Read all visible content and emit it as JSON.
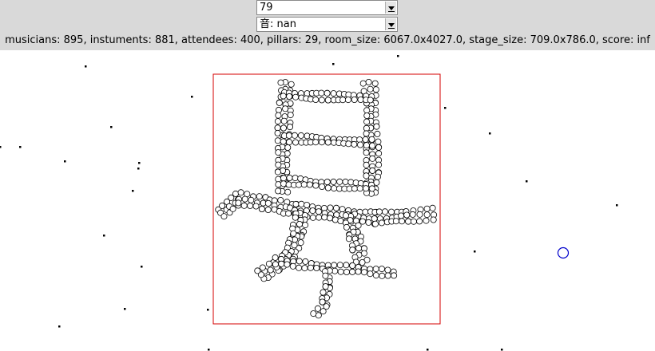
{
  "controls": {
    "problem_select_value": "79",
    "mode_select_value": "音: nan"
  },
  "stats_text": "musicians: 895, instuments: 881, attendees: 400, pillars: 29, room_size: 6067.0x4027.0, stage_size: 709.0x786.0, score: inf",
  "colors": {
    "toolbar_bg": "#d9d9d9",
    "stage_border": "#d40000",
    "musician_stroke": "#000000",
    "pillar_stroke": "#0000cc",
    "attendee_fill": "#000000"
  }
}
